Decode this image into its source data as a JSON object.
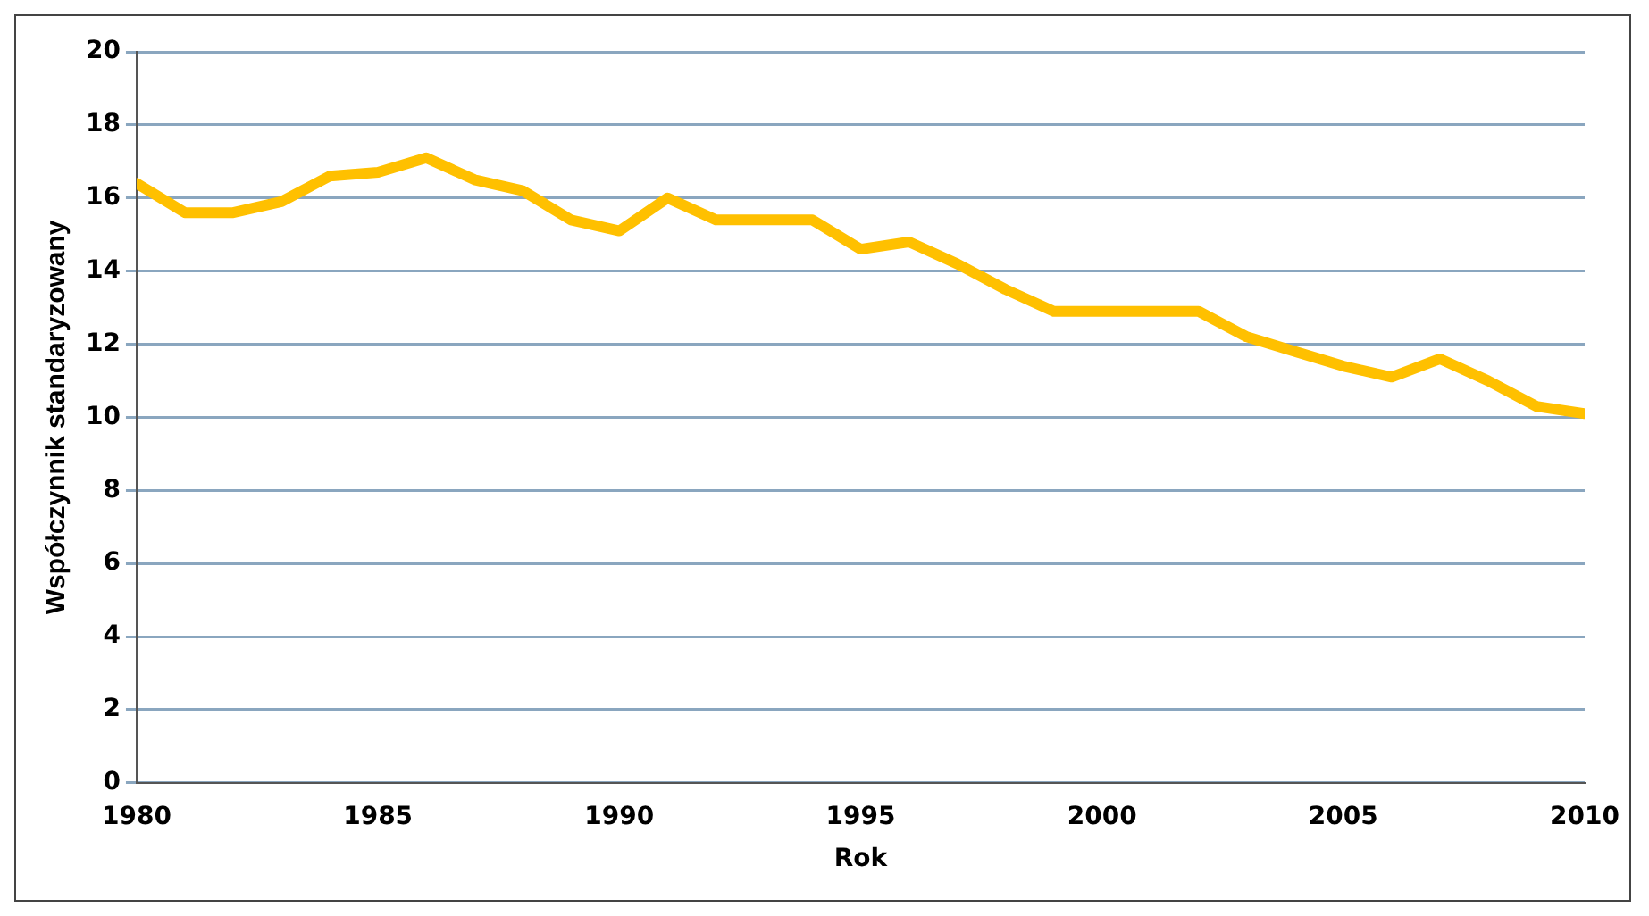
{
  "chart_data": {
    "type": "line",
    "xlabel": "Rok",
    "ylabel": "Współczynnik standaryzowany",
    "x": [
      1980,
      1981,
      1982,
      1983,
      1984,
      1985,
      1986,
      1987,
      1988,
      1989,
      1990,
      1991,
      1992,
      1993,
      1994,
      1995,
      1996,
      1997,
      1998,
      1999,
      2000,
      2001,
      2002,
      2003,
      2004,
      2005,
      2006,
      2007,
      2008,
      2009,
      2010
    ],
    "series": [
      {
        "color": "#ffc000",
        "values": [
          16.4,
          15.6,
          15.6,
          15.9,
          16.6,
          16.7,
          17.1,
          16.5,
          16.2,
          15.4,
          15.1,
          16.0,
          15.4,
          15.4,
          15.4,
          14.6,
          14.8,
          14.2,
          13.5,
          12.9,
          12.9,
          12.9,
          12.9,
          12.2,
          11.8,
          11.4,
          11.1,
          11.6,
          11.0,
          10.3,
          10.1
        ]
      }
    ],
    "xlim": [
      1980,
      2010
    ],
    "xticks": [
      1980,
      1985,
      1990,
      1995,
      2000,
      2005,
      2010
    ],
    "ylim": [
      0,
      20
    ],
    "yticks": [
      0,
      2,
      4,
      6,
      8,
      10,
      12,
      14,
      16,
      18,
      20
    ],
    "grid": "y",
    "legend": false,
    "marker": "none",
    "line_style": "solid"
  }
}
